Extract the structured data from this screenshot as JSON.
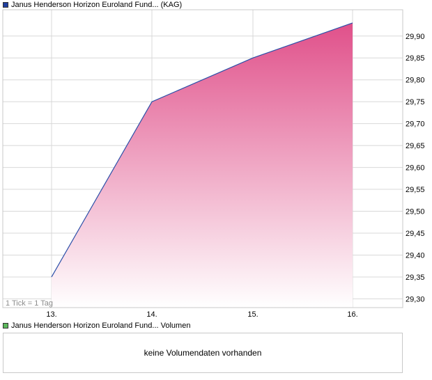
{
  "colors": {
    "price_swatch": "#1f3f9f",
    "volume_swatch": "#5cb85c",
    "line": "#2b4fa8",
    "fill_top": "#e0508a",
    "fill_bottom": "#ffffff",
    "grid": "#d8d8d8",
    "border": "#c8c8c8"
  },
  "legend": {
    "price_label": "Janus Henderson Horizon Euroland Fund... (KAG)",
    "volume_label": "Janus Henderson Horizon Euroland Fund... Volumen"
  },
  "tick_note": "1 Tick = 1 Tag",
  "volume": {
    "empty_message": "keine Volumendaten vorhanden"
  },
  "chart_data": {
    "type": "area",
    "categories": [
      "13.",
      "14.",
      "15.",
      "16."
    ],
    "values": [
      29.35,
      29.75,
      29.85,
      29.93
    ],
    "title": "",
    "xlabel": "",
    "ylabel": "",
    "ylim": [
      29.28,
      29.96
    ],
    "yticks": [
      "29,30",
      "29,35",
      "29,40",
      "29,45",
      "29,50",
      "29,55",
      "29,60",
      "29,65",
      "29,70",
      "29,75",
      "29,80",
      "29,85",
      "29,90"
    ],
    "ytick_values": [
      29.3,
      29.35,
      29.4,
      29.45,
      29.5,
      29.55,
      29.6,
      29.65,
      29.7,
      29.75,
      29.8,
      29.85,
      29.9
    ],
    "grid": true,
    "legend_position": "top-left"
  }
}
